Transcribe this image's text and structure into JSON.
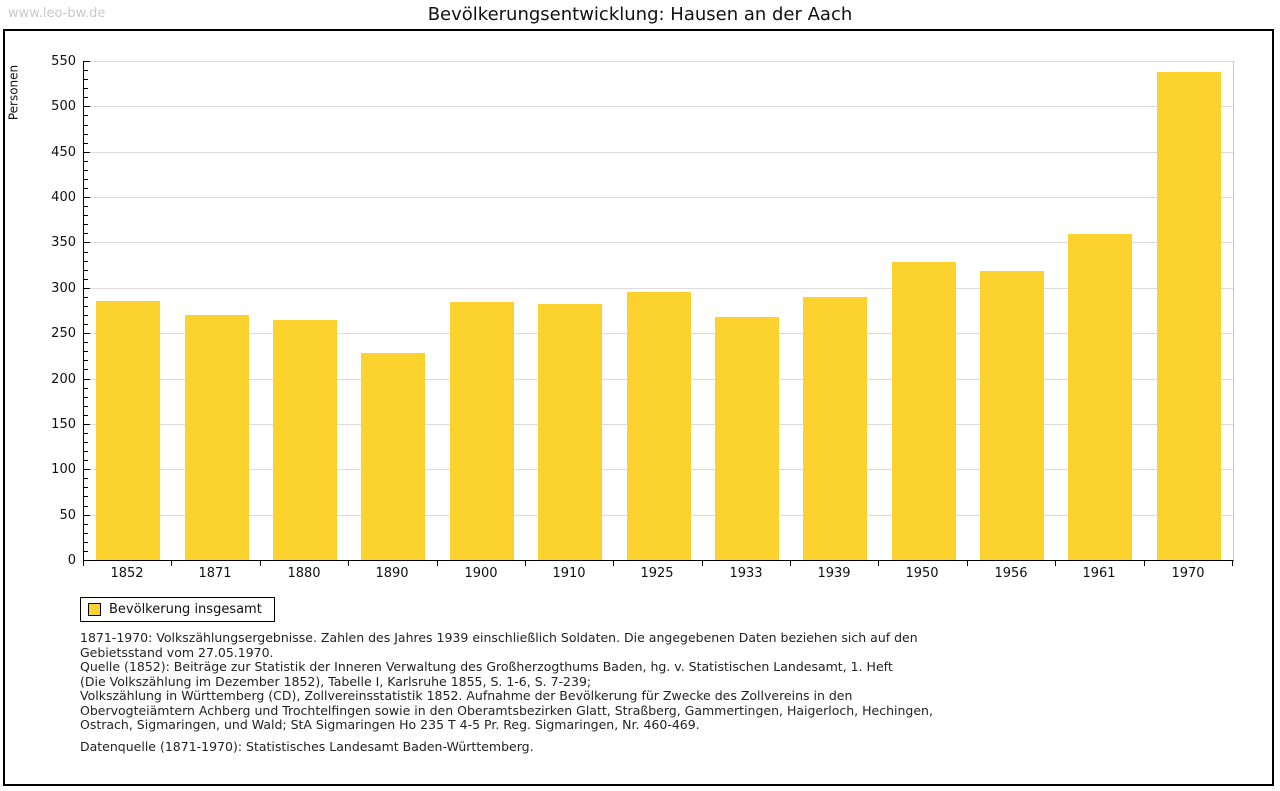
{
  "watermark": "www.leo-bw.de",
  "title": "Bevölkerungsentwicklung: Hausen an der Aach",
  "chart_data": {
    "type": "bar",
    "title": "Bevölkerungsentwicklung: Hausen an der Aach",
    "xlabel": "",
    "ylabel": "Personen",
    "categories": [
      "1852",
      "1871",
      "1880",
      "1890",
      "1900",
      "1910",
      "1925",
      "1933",
      "1939",
      "1950",
      "1956",
      "1961",
      "1970"
    ],
    "values": [
      285,
      270,
      265,
      228,
      284,
      282,
      295,
      268,
      290,
      329,
      319,
      359,
      538
    ],
    "ylim": [
      0,
      550
    ],
    "ytick_step": 50,
    "yminor_step": 10,
    "grid": true,
    "bar_color": "#fcd32e",
    "grid_color": "#dcdcdc",
    "legend": {
      "label": "Bevölkerung insgesamt",
      "position": "bottom-left"
    }
  },
  "notes": {
    "lines": [
      "1871-1970: Volkszählungsergebnisse. Zahlen des Jahres 1939 einschließlich Soldaten. Die angegebenen Daten beziehen sich auf den",
      "Gebietsstand vom 27.05.1970.",
      "Quelle (1852): Beiträge zur Statistik der Inneren Verwaltung des Großherzogthums Baden, hg. v. Statistischen Landesamt, 1. Heft",
      "(Die Volkszählung im Dezember 1852), Tabelle I, Karlsruhe 1855, S. 1-6, S. 7-239;",
      "Volkszählung in Württemberg (CD), Zollvereinsstatistik 1852. Aufnahme der Bevölkerung für Zwecke des Zollvereins in den",
      "Obervogteiämtern Achberg und Trochtelfingen sowie in den Oberamtsbezirken Glatt, Straßberg, Gammertingen, Haigerloch, Hechingen,",
      "Ostrach, Sigmaringen, und Wald; StA Sigmaringen Ho 235 T 4-5 Pr. Reg. Sigmaringen, Nr. 460-469."
    ],
    "datasource": "Datenquelle (1871-1970): Statistisches Landesamt Baden-Württemberg."
  }
}
